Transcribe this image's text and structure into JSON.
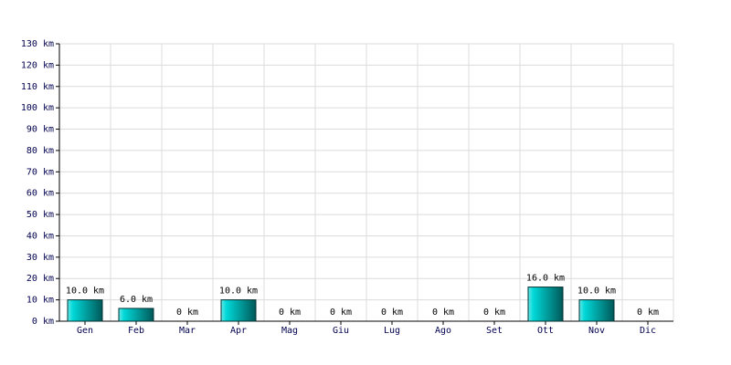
{
  "chart_data": {
    "type": "bar",
    "categories": [
      "Gen",
      "Feb",
      "Mar",
      "Apr",
      "Mag",
      "Giu",
      "Lug",
      "Ago",
      "Set",
      "Ott",
      "Nov",
      "Dic"
    ],
    "values": [
      10,
      6,
      0,
      10,
      0,
      0,
      0,
      0,
      0,
      16,
      10,
      0
    ],
    "value_labels": [
      "10.0 km",
      "6.0 km",
      "0 km",
      "10.0 km",
      "0 km",
      "0 km",
      "0 km",
      "0 km",
      "0 km",
      "16.0 km",
      "10.0 km",
      "0 km"
    ],
    "color": "#00d8d8",
    "ylim": [
      0,
      130
    ],
    "yticks": [
      {
        "value": 0,
        "label": "0 km"
      },
      {
        "value": 10,
        "label": "10 km"
      },
      {
        "value": 20,
        "label": "20 km"
      },
      {
        "value": 30,
        "label": "30 km"
      },
      {
        "value": 40,
        "label": "40 km"
      },
      {
        "value": 50,
        "label": "50 km"
      },
      {
        "value": 60,
        "label": "60 km"
      },
      {
        "value": 70,
        "label": "70 km"
      },
      {
        "value": 80,
        "label": "80 km"
      },
      {
        "value": 90,
        "label": "90 km"
      },
      {
        "value": 100,
        "label": "100 km"
      },
      {
        "value": 110,
        "label": "110 km"
      },
      {
        "value": 120,
        "label": "120 km"
      },
      {
        "value": 130,
        "label": "130 km"
      }
    ],
    "grid": true
  }
}
